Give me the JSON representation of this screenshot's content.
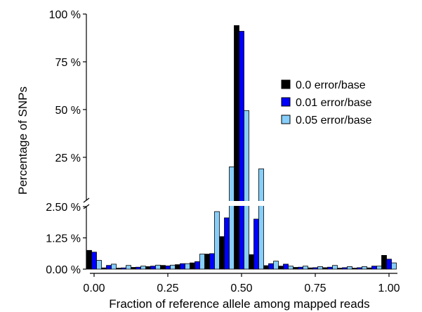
{
  "chart_data": {
    "type": "bar",
    "title": "",
    "xlabel": "Fraction of reference allele among mapped reads",
    "ylabel": "Percentage of SNPs",
    "x_ticks": [
      "0.00",
      "0.25",
      "0.50",
      "0.75",
      "1.00"
    ],
    "y_ticks_lower": [
      "0.00 %",
      "1.25 %",
      "2.50 %"
    ],
    "y_ticks_upper": [
      "25 %",
      "50 %",
      "75 %",
      "100 %"
    ],
    "axis_break": {
      "lower_range": [
        0,
        2.5
      ],
      "upper_range": [
        2.5,
        100
      ]
    },
    "x_range": [
      0,
      1
    ],
    "grid": false,
    "legend_position": "right",
    "x": [
      0.0,
      0.05,
      0.1,
      0.15,
      0.2,
      0.25,
      0.3,
      0.35,
      0.4,
      0.45,
      0.5,
      0.55,
      0.6,
      0.65,
      0.7,
      0.75,
      0.8,
      0.85,
      0.9,
      0.95,
      1.0
    ],
    "series": [
      {
        "name": "0.0 error/base",
        "color": "#000000",
        "values": [
          0.75,
          0.05,
          0.04,
          0.07,
          0.1,
          0.15,
          0.18,
          0.25,
          0.6,
          1.3,
          94.0,
          0.58,
          0.14,
          0.12,
          0.07,
          0.05,
          0.06,
          0.04,
          0.04,
          0.05,
          0.55
        ]
      },
      {
        "name": "0.01 error/base",
        "color": "#0000ff",
        "values": [
          0.68,
          0.15,
          0.05,
          0.08,
          0.12,
          0.13,
          0.22,
          0.3,
          0.62,
          2.05,
          91.0,
          2.0,
          0.22,
          0.2,
          0.08,
          0.06,
          0.08,
          0.06,
          0.06,
          0.12,
          0.4
        ]
      },
      {
        "name": "0.05 error/base",
        "color": "#87cefa",
        "values": [
          0.35,
          0.2,
          0.15,
          0.12,
          0.16,
          0.16,
          0.22,
          0.6,
          2.3,
          20.0,
          49.5,
          19.0,
          0.32,
          0.12,
          0.12,
          0.1,
          0.15,
          0.1,
          0.1,
          0.12,
          0.25
        ]
      }
    ]
  }
}
